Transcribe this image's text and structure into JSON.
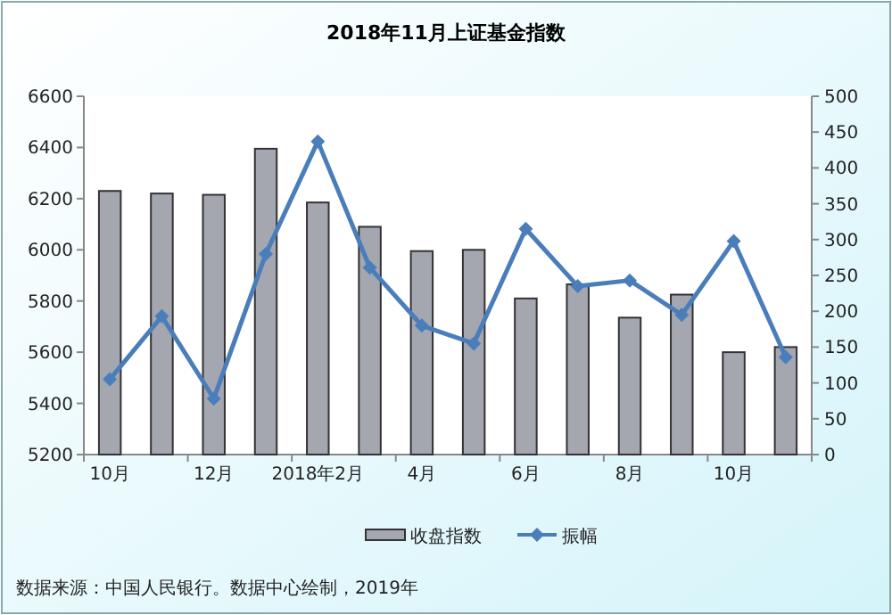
{
  "chart_data": {
    "type": "bar",
    "title": "2018年11月上证基金指数",
    "categories": [
      "10月",
      null,
      "12月",
      null,
      "2018年2月",
      null,
      "4月",
      null,
      "6月",
      null,
      "8月",
      null,
      "10月",
      null
    ],
    "series": [
      {
        "name": "收盘指数",
        "color": "#a4a6b0",
        "values": [
          6230,
          6220,
          6215,
          6395,
          6185,
          6090,
          5995,
          6000,
          5810,
          5865,
          5735,
          5825,
          5600,
          5620
        ]
      },
      {
        "name": "振幅",
        "type": "line",
        "axis": "y2",
        "color": "#4a7ebb",
        "marker": "diamond",
        "values": [
          105,
          193,
          78,
          280,
          437,
          261,
          180,
          155,
          315,
          235,
          243,
          195,
          298,
          136
        ]
      }
    ],
    "ylim": [
      5200,
      6600
    ],
    "yticks": [
      5200,
      5400,
      5600,
      5800,
      6000,
      6200,
      6400,
      6600
    ],
    "y2lim": [
      0,
      500
    ],
    "y2ticks": [
      0,
      50,
      100,
      150,
      200,
      250,
      300,
      350,
      400,
      450,
      500
    ],
    "legend": "bottom",
    "grid": false,
    "annotations": [
      "数据来源：中国人民银行。数据中心绘制，2019年"
    ]
  }
}
